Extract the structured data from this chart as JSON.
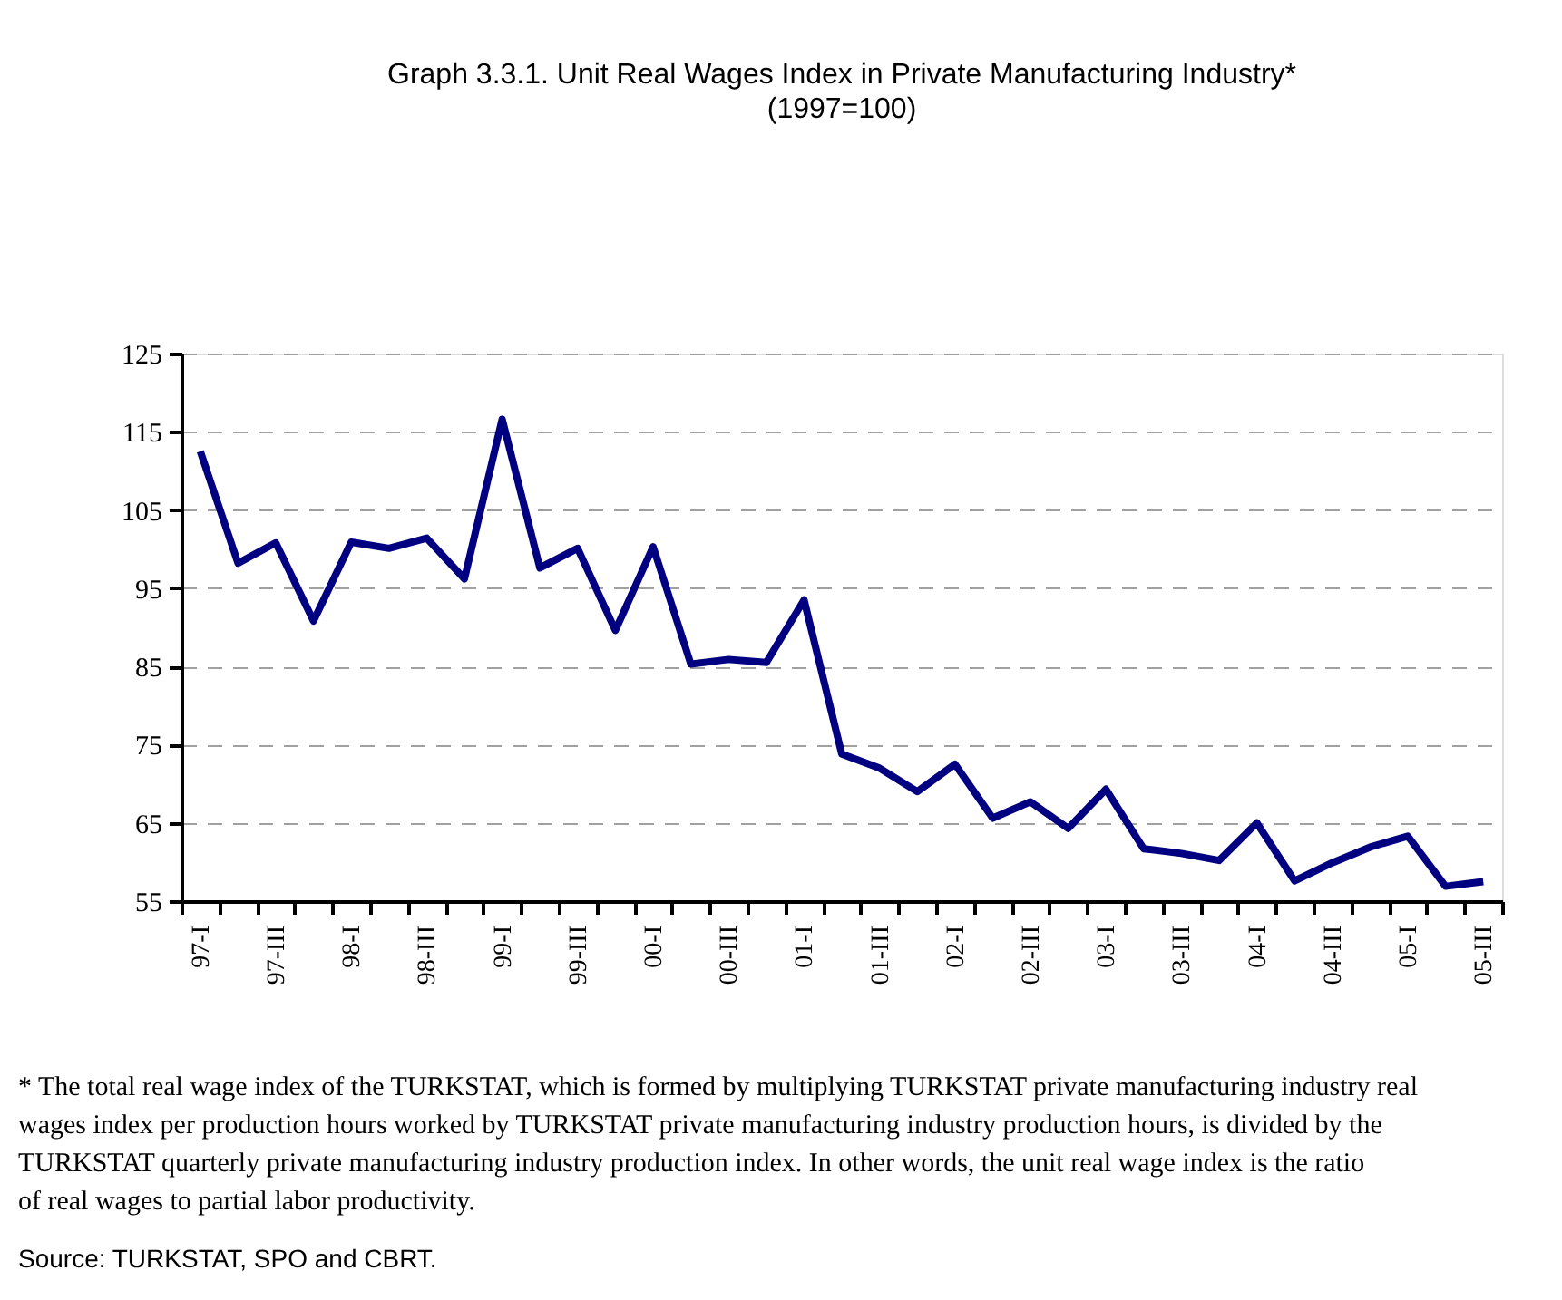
{
  "chart_data": {
    "type": "line",
    "title": "Graph 3.3.1. Unit Real Wages Index in Private Manufacturing Industry*",
    "subtitle": "(1997=100)",
    "categories": [
      "97-I",
      null,
      "97-III",
      null,
      "98-I",
      null,
      "98-III",
      null,
      "99-I",
      null,
      "99-III",
      null,
      "00-I",
      null,
      "00-III",
      null,
      "01-I",
      null,
      "01-III",
      null,
      "02-I",
      null,
      "02-III",
      null,
      "03-I",
      null,
      "03-III",
      null,
      "04-I",
      null,
      "04-III",
      null,
      "05-I",
      null,
      "05-III"
    ],
    "series": [
      {
        "color": "#000080",
        "values": [
          112.5,
          98.2,
          100.8,
          90.8,
          100.9,
          100.1,
          101.4,
          96.2,
          116.6,
          97.6,
          100.1,
          89.6,
          100.3,
          85.3,
          85.9,
          85.5,
          93.5,
          73.8,
          72.0,
          69.0,
          72.5,
          65.6,
          67.7,
          64.3,
          69.3,
          61.7,
          61.1,
          60.2,
          65.0,
          57.6,
          59.9,
          61.9,
          63.3,
          56.9,
          57.5
        ]
      }
    ],
    "ylim": [
      55,
      125
    ],
    "yticks": [
      55,
      65,
      75,
      85,
      95,
      105,
      115,
      125
    ],
    "grid": "y",
    "marker": "none",
    "line_style": "solid",
    "annotations": [
      "* The total real wage index of the TURKSTAT, which is formed by multiplying TURKSTAT private manufacturing industry real wages index per production hours worked by TURKSTAT private manufacturing industry production hours, is divided by the TURKSTAT quarterly private manufacturing industry production index. In other words, the unit real wage index is the ratio of real wages to partial labor productivity.",
      "Source: TURKSTAT, SPO and CBRT."
    ]
  }
}
